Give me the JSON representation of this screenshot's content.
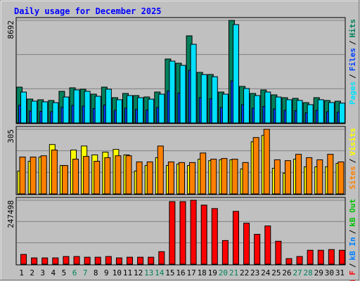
{
  "legend_separator": "/",
  "chart_data": [
    {
      "type": "bar",
      "title": "Daily usage for December 2025",
      "categories": [
        "1",
        "2",
        "3",
        "4",
        "5",
        "6",
        "7",
        "8",
        "9",
        "10",
        "11",
        "12",
        "13",
        "14",
        "15",
        "16",
        "17",
        "18",
        "19",
        "20",
        "21",
        "22",
        "23",
        "24",
        "25",
        "26",
        "27",
        "28",
        "29",
        "30",
        "31"
      ],
      "highlight_indices": [
        5,
        6,
        12,
        13,
        19,
        20,
        26,
        27
      ],
      "highlight_color": "#00805c",
      "ylim": [
        0,
        8692
      ],
      "yticks": [
        8692
      ],
      "series": [
        {
          "name": "Pages",
          "color": "#00e0ff",
          "values": [
            2620,
            1850,
            1790,
            1720,
            2200,
            2800,
            2680,
            2260,
            2860,
            1970,
            2320,
            2140,
            2020,
            2440,
            5240,
            4880,
            6667,
            4100,
            3920,
            2440,
            8334,
            2920,
            2320,
            2620,
            2200,
            1970,
            1910,
            1550,
            1970,
            1730,
            1680
          ]
        },
        {
          "name": "Files",
          "color": "#0040ff",
          "values": [
            1500,
            1010,
            980,
            950,
            1340,
            1490,
            1430,
            1220,
            1520,
            1070,
            1250,
            1160,
            1100,
            1310,
            2710,
            2530,
            4460,
            2140,
            2050,
            1310,
            3570,
            1550,
            1250,
            1400,
            1190,
            1070,
            1040,
            860,
            1070,
            950,
            920
          ]
        },
        {
          "name": "Hits",
          "color": "#00805c",
          "values": [
            3036,
            2024,
            1965,
            1905,
            2679,
            2977,
            2858,
            2441,
            3036,
            2143,
            2500,
            2322,
            2203,
            2620,
            5418,
            5060,
            7382,
            4286,
            4108,
            2620,
            8692,
            3096,
            2500,
            2798,
            2381,
            2143,
            2084,
            1726,
            2143,
            1905,
            1845
          ]
        }
      ]
    },
    {
      "type": "bar",
      "ylim": [
        0,
        305
      ],
      "yticks": [
        305
      ],
      "series": [
        {
          "name": "Sites",
          "color": "#ff8000",
          "values": [
            174,
            174,
            180,
            207,
            134,
            164,
            177,
            154,
            171,
            180,
            180,
            151,
            151,
            226,
            151,
            148,
            148,
            193,
            164,
            167,
            164,
            148,
            266,
            305,
            161,
            157,
            187,
            171,
            161,
            187,
            151
          ]
        },
        {
          "name": "Visits",
          "color": "#ffff00",
          "values": [
            108,
            154,
            174,
            233,
            134,
            207,
            226,
            184,
            197,
            210,
            184,
            108,
            134,
            171,
            134,
            141,
            134,
            164,
            157,
            161,
            161,
            118,
            246,
            276,
            121,
            98,
            164,
            128,
            128,
            128,
            144
          ]
        }
      ]
    },
    {
      "type": "bar",
      "ylim": [
        0,
        247498
      ],
      "yticks": [
        247498
      ],
      "series": [
        {
          "name": "kB F",
          "color": "#ff0000",
          "values": [
            37660,
            24210,
            24210,
            24210,
            29590,
            29590,
            26900,
            26900,
            29590,
            24210,
            26900,
            26900,
            26900,
            48420,
            242100,
            242100,
            247498,
            228650,
            215200,
            91460,
            204440,
            158710,
            115670,
            147950,
            88770,
            21520,
            29590,
            53800,
            53800,
            56490,
            53800
          ]
        },
        {
          "name": "kB In",
          "color": "#0080ff",
          "values": [
            null,
            null,
            null,
            null,
            null,
            null,
            null,
            null,
            null,
            null,
            null,
            null,
            null,
            null,
            null,
            null,
            null,
            null,
            null,
            null,
            null,
            null,
            null,
            null,
            null,
            null,
            null,
            null,
            null,
            null,
            null
          ]
        },
        {
          "name": "kB Out",
          "color": "#00c000",
          "values": [
            null,
            null,
            null,
            null,
            null,
            null,
            null,
            null,
            null,
            null,
            null,
            null,
            null,
            null,
            null,
            null,
            null,
            null,
            null,
            null,
            null,
            null,
            null,
            null,
            null,
            null,
            null,
            null,
            null,
            null,
            null
          ]
        }
      ]
    }
  ]
}
